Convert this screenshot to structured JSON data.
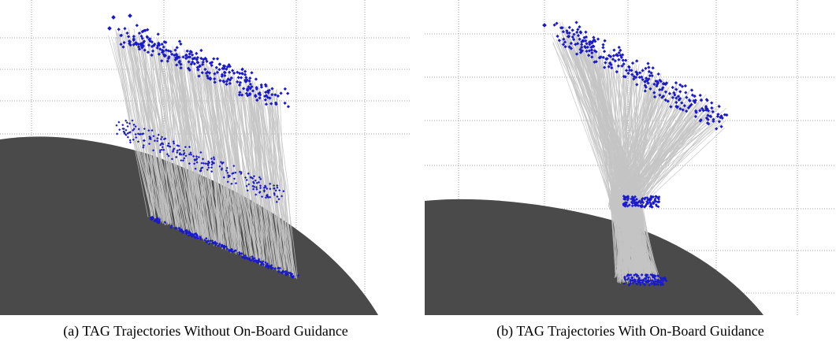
{
  "figure": {
    "subfigures": [
      {
        "id": "a",
        "caption": "(a)  TAG Trajectories Without On-Board Guidance",
        "guidance": false
      },
      {
        "id": "b",
        "caption": "(b)  TAG Trajectories With On-Board Guidance",
        "guidance": true
      }
    ],
    "colors": {
      "surface": "#4a4a4a",
      "trajectory": "#c4c4c4",
      "marker": "#1a1acc",
      "grid": "#888888"
    }
  }
}
